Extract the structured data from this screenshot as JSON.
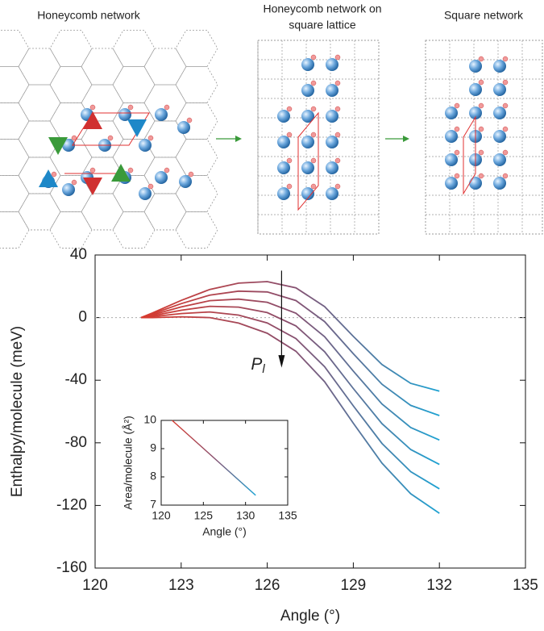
{
  "panels": [
    [
      "Honeycomb network"
    ],
    [
      "Honeycomb network on",
      "square lattice"
    ],
    [
      "Square network"
    ]
  ],
  "chart_data": [
    {
      "type": "line",
      "xlabel": "Angle (°)",
      "ylabel": "Enthalpy/molecule (meV)",
      "x": [
        121.6,
        122,
        123,
        124,
        125,
        126,
        127,
        128,
        129,
        130,
        131,
        132
      ],
      "gradient": [
        "#d83a2e",
        "#8a4f6e",
        "#1ea2d2"
      ],
      "series": [
        {
          "values": [
            0,
            3,
            11,
            18,
            22,
            23,
            19,
            7,
            -12,
            -30,
            -42,
            -47
          ]
        },
        {
          "values": [
            0,
            2.4,
            8.9,
            14.4,
            16.9,
            16.4,
            10.9,
            -2.6,
            -23.1,
            -42.6,
            -56.1,
            -62.6
          ]
        },
        {
          "values": [
            0,
            1.8,
            6.8,
            10.8,
            11.8,
            9.8,
            2.8,
            -12.2,
            -34.2,
            -55.2,
            -70.2,
            -78.2
          ]
        },
        {
          "values": [
            0,
            1.2,
            4.7,
            7.2,
            6.7,
            3.2,
            -5.3,
            -21.8,
            -45.3,
            -67.8,
            -84.3,
            -93.8
          ]
        },
        {
          "values": [
            0,
            0.6,
            2.6,
            3.6,
            1.6,
            -3.4,
            -13.4,
            -31.4,
            -56.4,
            -80.4,
            -98.4,
            -109.4
          ]
        },
        {
          "values": [
            0,
            0,
            0.5,
            0,
            -3.5,
            -10,
            -21.5,
            -41,
            -67.5,
            -93,
            -112.5,
            -125
          ]
        }
      ],
      "xlim": [
        120,
        135
      ],
      "xticks": [
        120,
        123,
        126,
        129,
        132,
        135
      ],
      "ylim": [
        -160,
        40
      ],
      "yticks": [
        -160,
        -120,
        -80,
        -40,
        0,
        40
      ],
      "zero_line": true,
      "annotation": {
        "text": "P",
        "subscript": "l"
      }
    },
    {
      "type": "line",
      "xlabel": "Angle (°)",
      "ylabel": "Area/molecule (Å²)",
      "x": [
        121.3,
        131.2
      ],
      "series": [
        {
          "values": [
            10,
            7.35
          ]
        }
      ],
      "xlim": [
        120,
        135
      ],
      "xticks": [
        120,
        125,
        130,
        135
      ],
      "ylim": [
        7,
        10
      ],
      "yticks": [
        7,
        8,
        9,
        10
      ]
    }
  ]
}
